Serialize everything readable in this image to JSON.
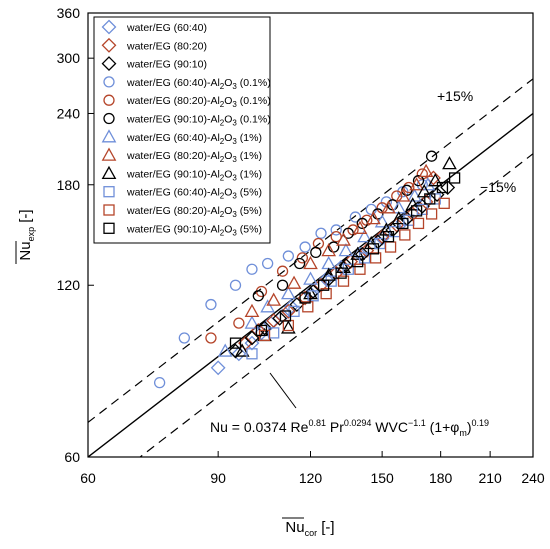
{
  "chart_data": {
    "type": "scatter",
    "title": "",
    "xlabel": "Nu_cor [-]",
    "ylabel": "Nu_exp [-]",
    "x_ticks": [
      60,
      90,
      120,
      150,
      180,
      210,
      240
    ],
    "y_ticks": [
      60,
      120,
      180,
      240,
      300,
      360
    ],
    "xlim": [
      60,
      240
    ],
    "ylim": [
      60,
      360
    ],
    "scale": "log",
    "grid": false,
    "legend_position": "top-left",
    "reference_lines": [
      {
        "label": "",
        "factor": 1.0,
        "style": "solid"
      },
      {
        "label": "+15%",
        "factor": 1.15,
        "style": "dashed"
      },
      {
        "label": "−15%",
        "factor": 0.85,
        "style": "dashed"
      }
    ],
    "correlation": {
      "prefix": "Nu = 0.0374 Re",
      "re_exp": "0.81",
      "pr": " Pr",
      "pr_exp": "0.0294",
      "wvc": " WVC",
      "wvc_exp": "−1.1",
      "phi": " (1+φ",
      "phi_sub": "m",
      "close": ")",
      "phi_exp": "0.19"
    },
    "series": [
      {
        "name": "water/EG (60:40)",
        "marker": "diamond",
        "color": "#6f8fd9",
        "points": [
          [
            90,
            86
          ],
          [
            96,
            91
          ],
          [
            100,
            95
          ],
          [
            103,
            99
          ],
          [
            106,
            103
          ],
          [
            110,
            106
          ],
          [
            113,
            110
          ],
          [
            120,
            116
          ],
          [
            126,
            123
          ],
          [
            132,
            129
          ],
          [
            140,
            136
          ],
          [
            150,
            145
          ],
          [
            160,
            155
          ],
          [
            170,
            165
          ]
        ]
      },
      {
        "name": "water/EG (80:20)",
        "marker": "diamond",
        "color": "#b5452a",
        "points": [
          [
            98,
            95
          ],
          [
            102,
            100
          ],
          [
            107,
            104
          ],
          [
            112,
            108
          ],
          [
            118,
            114
          ],
          [
            124,
            120
          ],
          [
            130,
            126
          ],
          [
            136,
            132
          ],
          [
            143,
            138
          ],
          [
            150,
            146
          ],
          [
            157,
            153
          ],
          [
            165,
            160
          ],
          [
            172,
            168
          ],
          [
            176,
            185
          ]
        ]
      },
      {
        "name": "water/EG (90:10)",
        "marker": "diamond",
        "color": "#000000",
        "points": [
          [
            95,
            92
          ],
          [
            100,
            97
          ],
          [
            104,
            101
          ],
          [
            109,
            105
          ],
          [
            115,
            111
          ],
          [
            121,
            117
          ],
          [
            127,
            123
          ],
          [
            134,
            130
          ],
          [
            141,
            136
          ],
          [
            148,
            143
          ],
          [
            155,
            150
          ],
          [
            162,
            157
          ],
          [
            170,
            165
          ],
          [
            178,
            173
          ],
          [
            184,
            178
          ]
        ]
      },
      {
        "name": "water/EG (60:40)-Al2O3 (0.1%)",
        "marker": "circle",
        "color": "#6f8fd9",
        "points": [
          [
            75,
            81
          ],
          [
            81,
            97
          ],
          [
            88,
            111
          ],
          [
            95,
            120
          ],
          [
            100,
            128
          ],
          [
            105,
            131
          ],
          [
            112,
            135
          ],
          [
            118,
            140
          ],
          [
            124,
            148
          ],
          [
            130,
            150
          ],
          [
            138,
            158
          ],
          [
            145,
            163
          ],
          [
            152,
            168
          ],
          [
            160,
            175
          ],
          [
            170,
            180
          ]
        ]
      },
      {
        "name": "water/EG (80:20)-Al2O3 (0.1%)",
        "marker": "circle",
        "color": "#b5452a",
        "points": [
          [
            88,
            97
          ],
          [
            96,
            103
          ],
          [
            103,
            117
          ],
          [
            110,
            127
          ],
          [
            117,
            134
          ],
          [
            123,
            142
          ],
          [
            130,
            146
          ],
          [
            137,
            150
          ],
          [
            143,
            156
          ],
          [
            150,
            164
          ],
          [
            157,
            172
          ],
          [
            163,
            178
          ],
          [
            170,
            188
          ]
        ]
      },
      {
        "name": "water/EG (90:10)-Al2O3 (0.1%)",
        "marker": "circle",
        "color": "#000000",
        "points": [
          [
            102,
            115
          ],
          [
            110,
            120
          ],
          [
            116,
            131
          ],
          [
            122,
            137
          ],
          [
            129,
            140
          ],
          [
            135,
            148
          ],
          [
            141,
            154
          ],
          [
            148,
            160
          ],
          [
            155,
            166
          ],
          [
            162,
            176
          ],
          [
            168,
            183
          ],
          [
            175,
            202
          ]
        ]
      },
      {
        "name": "water/EG (60:40)-Al2O3 (1%)",
        "marker": "triangle",
        "color": "#6f8fd9",
        "points": [
          [
            92,
            92
          ],
          [
            100,
            103
          ],
          [
            105,
            110
          ],
          [
            112,
            116
          ],
          [
            120,
            123
          ],
          [
            127,
            131
          ],
          [
            134,
            138
          ],
          [
            142,
            146
          ],
          [
            150,
            155
          ],
          [
            158,
            164
          ],
          [
            166,
            172
          ],
          [
            173,
            180
          ]
        ]
      },
      {
        "name": "water/EG (80:20)-Al2O3 (1%)",
        "marker": "triangle",
        "color": "#b5452a",
        "points": [
          [
            100,
            108
          ],
          [
            107,
            113
          ],
          [
            114,
            121
          ],
          [
            120,
            131
          ],
          [
            127,
            138
          ],
          [
            133,
            144
          ],
          [
            140,
            151
          ],
          [
            146,
            157
          ],
          [
            153,
            164
          ],
          [
            160,
            172
          ],
          [
            167,
            180
          ],
          [
            172,
            190
          ]
        ]
      },
      {
        "name": "water/EG (90:10)-Al2O3 (1%)",
        "marker": "triangle",
        "color": "#000000",
        "points": [
          [
            97,
            92
          ],
          [
            104,
            98
          ],
          [
            112,
            101
          ],
          [
            120,
            116
          ],
          [
            127,
            125
          ],
          [
            133,
            129
          ],
          [
            139,
            136
          ],
          [
            145,
            142
          ],
          [
            152,
            150
          ],
          [
            158,
            157
          ],
          [
            165,
            166
          ],
          [
            171,
            175
          ],
          [
            177,
            183
          ],
          [
            185,
            196
          ]
        ]
      },
      {
        "name": "water/EG (60:40)-Al2O3 (5%)",
        "marker": "square",
        "color": "#6f8fd9",
        "points": [
          [
            100,
            91
          ],
          [
            107,
            99
          ],
          [
            114,
            108
          ],
          [
            121,
            115
          ],
          [
            128,
            122
          ],
          [
            135,
            128
          ],
          [
            142,
            134
          ],
          [
            149,
            142
          ],
          [
            156,
            149
          ],
          [
            163,
            156
          ],
          [
            170,
            163
          ],
          [
            177,
            170
          ]
        ]
      },
      {
        "name": "water/EG (80:20)-Al2O3 (5%)",
        "marker": "square",
        "color": "#b5452a",
        "points": [
          [
            104,
            98
          ],
          [
            112,
            102
          ],
          [
            119,
            110
          ],
          [
            126,
            116
          ],
          [
            133,
            122
          ],
          [
            140,
            128
          ],
          [
            147,
            134
          ],
          [
            154,
            140
          ],
          [
            161,
            147
          ],
          [
            168,
            154
          ],
          [
            175,
            160
          ],
          [
            182,
            167
          ]
        ]
      },
      {
        "name": "water/EG (90:10)-Al2O3 (5%)",
        "marker": "square",
        "color": "#000000",
        "points": [
          [
            95,
            95
          ],
          [
            103,
            100
          ],
          [
            111,
            106
          ],
          [
            118,
            114
          ],
          [
            125,
            120
          ],
          [
            132,
            126
          ],
          [
            139,
            132
          ],
          [
            146,
            139
          ],
          [
            153,
            146
          ],
          [
            160,
            154
          ],
          [
            167,
            162
          ],
          [
            174,
            170
          ],
          [
            181,
            178
          ],
          [
            188,
            185
          ]
        ]
      }
    ]
  }
}
